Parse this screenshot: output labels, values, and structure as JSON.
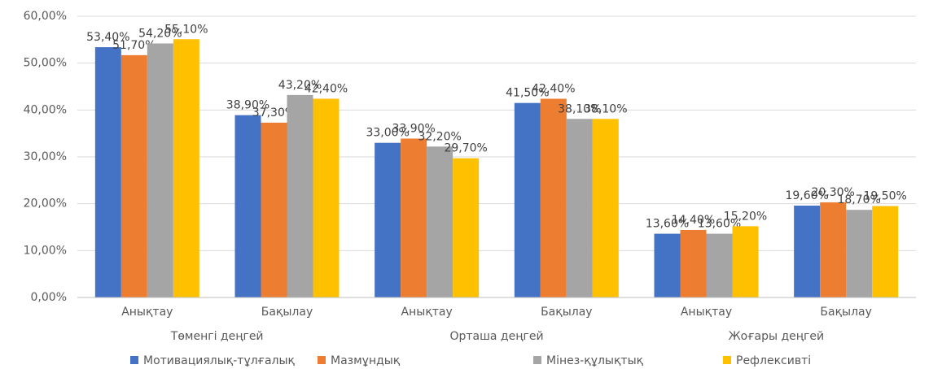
{
  "chart_data": {
    "type": "bar",
    "categories": [
      "Анықтау",
      "Бақылау",
      "Анықтау",
      "Бақылау",
      "Анықтау",
      "Бақылау"
    ],
    "groups": [
      "Төменгі деңгей",
      "Орташа деңгей",
      "Жоғары деңгей"
    ],
    "series": [
      {
        "name": "Мотивациялық-тұлғалық",
        "color": "#4472c4",
        "values": [
          53.4,
          38.9,
          33.0,
          41.5,
          13.6,
          19.6
        ],
        "value_labels": [
          "53,40%",
          "38,90%",
          "33,00%",
          "41,50%",
          "13,60%",
          "19,60%"
        ]
      },
      {
        "name": "Мазмұндық",
        "color": "#ed7d31",
        "values": [
          51.7,
          37.3,
          33.9,
          42.4,
          14.4,
          20.3
        ],
        "value_labels": [
          "51,70%",
          "37,30%",
          "33,90%",
          "42,40%",
          "14,40%",
          "20,30%"
        ]
      },
      {
        "name": "Мінез-құлықтық",
        "color": "#a5a5a5",
        "values": [
          54.2,
          43.2,
          32.2,
          38.1,
          13.6,
          18.7
        ],
        "value_labels": [
          "54,20%",
          "43,20%",
          "32,20%",
          "38,10%",
          "13,60%",
          "18,70%"
        ]
      },
      {
        "name": "Рефлексивті",
        "color": "#ffc000",
        "values": [
          55.1,
          42.4,
          29.7,
          38.1,
          15.2,
          19.5
        ],
        "value_labels": [
          "55,10%",
          "42,40%",
          "29,70%",
          "38,10%",
          "15,20%",
          "19,50%"
        ]
      }
    ],
    "ylim": [
      0,
      60
    ],
    "yticks": [
      {
        "value": 0,
        "label": "0,00%"
      },
      {
        "value": 10,
        "label": "10,00%"
      },
      {
        "value": 20,
        "label": "20,00%"
      },
      {
        "value": 30,
        "label": "30,00%"
      },
      {
        "value": 40,
        "label": "40,00%"
      },
      {
        "value": 50,
        "label": "50,00%"
      },
      {
        "value": 60,
        "label": "60,00%"
      }
    ],
    "grid": true,
    "legend": "bottom"
  }
}
